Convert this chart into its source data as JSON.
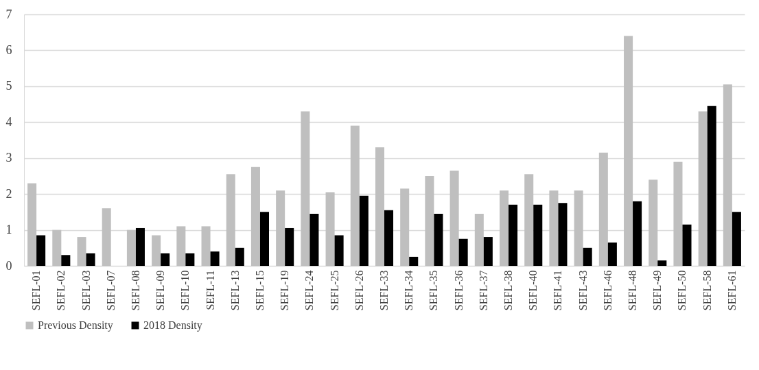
{
  "chart_data": {
    "type": "bar",
    "categories": [
      "SEFL-01",
      "SEFL-02",
      "SEFL-03",
      "SEFL-07",
      "SEFL-08",
      "SEFL-09",
      "SEFL-10",
      "SEFL-11",
      "SEFL-13",
      "SEFL-15",
      "SEFL-19",
      "SEFL-24",
      "SEFL-25",
      "SEFL-26",
      "SEFL-33",
      "SEFL-34",
      "SEFL-35",
      "SEFL-36",
      "SEFL-37",
      "SEFL-38",
      "SEFL-40",
      "SEFL-41",
      "SEFL-43",
      "SEFL-46",
      "SEFL-48",
      "SEFL-49",
      "SEFL-50",
      "SEFL-58",
      "SEFL-61"
    ],
    "series": [
      {
        "name": "Previous Density",
        "color": "#bfbfbf",
        "values": [
          2.3,
          1.0,
          0.8,
          1.6,
          1.0,
          0.85,
          1.1,
          1.1,
          2.55,
          2.75,
          2.1,
          4.3,
          2.05,
          3.9,
          3.3,
          2.15,
          2.5,
          2.65,
          1.45,
          2.1,
          2.55,
          2.1,
          2.1,
          3.15,
          6.4,
          2.4,
          2.9,
          4.3,
          5.05
        ]
      },
      {
        "name": "2018 Density",
        "color": "#000000",
        "values": [
          0.85,
          0.3,
          0.35,
          0,
          1.05,
          0.35,
          0.35,
          0.4,
          0.5,
          1.5,
          1.05,
          1.45,
          0.85,
          1.95,
          1.55,
          0.25,
          1.45,
          0.75,
          0.8,
          1.7,
          1.7,
          1.75,
          0.5,
          0.65,
          1.8,
          0.15,
          1.15,
          4.45,
          1.5
        ]
      }
    ],
    "ylim": [
      0,
      7
    ],
    "yticks": [
      0,
      1,
      2,
      3,
      4,
      5,
      6,
      7
    ],
    "grid": "y",
    "legend": "bottom"
  }
}
